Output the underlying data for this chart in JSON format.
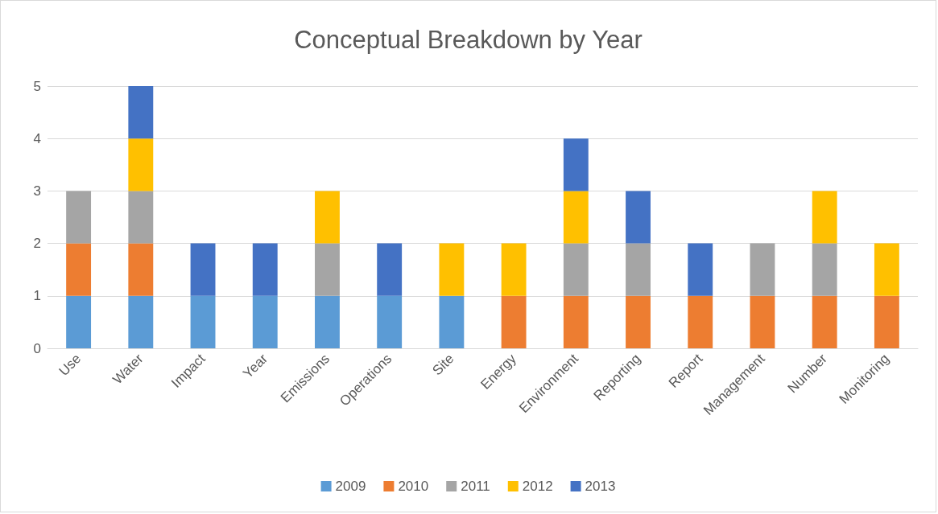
{
  "chart_data": {
    "type": "bar",
    "title": "Conceptual Breakdown by Year",
    "categories": [
      "Use",
      "Water",
      "Impact",
      "Year",
      "Emissions",
      "Operations",
      "Site",
      "Energy",
      "Environment",
      "Reporting",
      "Report",
      "Management",
      "Number",
      "Monitoring"
    ],
    "series": [
      {
        "name": "2009",
        "color": "#5b9bd5",
        "values": [
          1,
          1,
          1,
          1,
          1,
          1,
          1,
          0,
          0,
          0,
          0,
          0,
          0,
          0
        ]
      },
      {
        "name": "2010",
        "color": "#ed7d31",
        "values": [
          1,
          1,
          0,
          0,
          0,
          0,
          0,
          1,
          1,
          1,
          1,
          1,
          1,
          1
        ]
      },
      {
        "name": "2011",
        "color": "#a5a5a5",
        "values": [
          1,
          1,
          0,
          0,
          1,
          0,
          0,
          0,
          1,
          1,
          0,
          1,
          1,
          0
        ]
      },
      {
        "name": "2012",
        "color": "#ffc000",
        "values": [
          0,
          1,
          0,
          0,
          1,
          0,
          1,
          1,
          1,
          0,
          0,
          0,
          1,
          1
        ]
      },
      {
        "name": "2013",
        "color": "#4472c4",
        "values": [
          0,
          1,
          1,
          1,
          0,
          1,
          0,
          0,
          1,
          1,
          1,
          0,
          0,
          0
        ]
      }
    ],
    "stacked": true,
    "ylim": [
      0,
      5
    ],
    "yticks": [
      0,
      1,
      2,
      3,
      4,
      5
    ],
    "grid": "y",
    "legend": "bottom"
  }
}
